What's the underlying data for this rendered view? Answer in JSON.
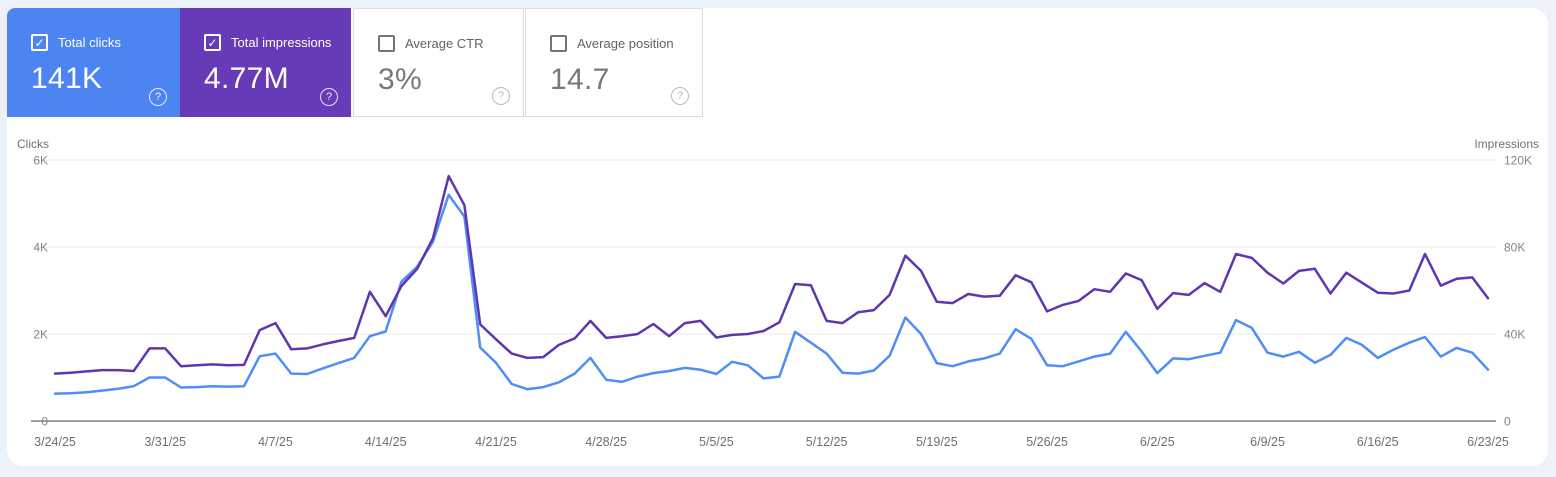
{
  "cards": [
    {
      "label": "Total clicks",
      "value": "141K",
      "checked": true,
      "bg": "#4c85f2",
      "accent": "#4f8df8"
    },
    {
      "label": "Total impressions",
      "value": "4.77M",
      "checked": true,
      "bg": "#673ab7",
      "accent": "#5f36b0"
    },
    {
      "label": "Average CTR",
      "value": "3%",
      "checked": false,
      "bg": "#ffffff",
      "accent": "#dadce0"
    },
    {
      "label": "Average position",
      "value": "14.7",
      "checked": false,
      "bg": "#ffffff",
      "accent": "#dadce0"
    }
  ],
  "chart_data": {
    "type": "line",
    "grid": true,
    "legend_position": "none",
    "left_axis": {
      "title": "Clicks",
      "ylim": [
        0,
        6000
      ],
      "ticks": [
        {
          "label": "0",
          "value": 0
        },
        {
          "label": "2K",
          "value": 2000
        },
        {
          "label": "4K",
          "value": 4000
        },
        {
          "label": "6K",
          "value": 6000
        }
      ]
    },
    "right_axis": {
      "title": "Impressions",
      "ylim": [
        0,
        120000
      ],
      "ticks": [
        {
          "label": "0",
          "value": 0
        },
        {
          "label": "40K",
          "value": 40000
        },
        {
          "label": "80K",
          "value": 80000
        },
        {
          "label": "120K",
          "value": 120000
        }
      ]
    },
    "x_tick_labels": [
      "3/24/25",
      "3/31/25",
      "4/7/25",
      "4/14/25",
      "4/21/25",
      "4/28/25",
      "5/5/25",
      "5/12/25",
      "5/19/25",
      "5/26/25",
      "6/2/25",
      "6/9/25",
      "6/16/25",
      "6/23/25"
    ],
    "x_start": "3/24/25",
    "x_end": "6/23/25",
    "x_interval": "daily",
    "series": [
      {
        "name": "Total clicks",
        "axis": "left",
        "color": "#4f8df8",
        "values": [
          630,
          640,
          660,
          700,
          740,
          800,
          1000,
          1000,
          770,
          780,
          800,
          790,
          800,
          1490,
          1550,
          1090,
          1080,
          1210,
          1330,
          1450,
          1950,
          2060,
          3200,
          3550,
          4120,
          5200,
          4700,
          1690,
          1340,
          850,
          730,
          780,
          890,
          1090,
          1450,
          950,
          900,
          1020,
          1100,
          1150,
          1220,
          1180,
          1080,
          1360,
          1280,
          980,
          1020,
          2050,
          1800,
          1550,
          1110,
          1090,
          1160,
          1500,
          2380,
          2000,
          1330,
          1260,
          1370,
          1440,
          1550,
          2110,
          1890,
          1280,
          1260,
          1370,
          1480,
          1550,
          2050,
          1600,
          1100,
          1440,
          1420,
          1500,
          1570,
          2320,
          2140,
          1570,
          1480,
          1590,
          1340,
          1520,
          1910,
          1750,
          1450,
          1640,
          1800,
          1930,
          1480,
          1680,
          1570,
          1180
        ]
      },
      {
        "name": "Total impressions",
        "axis": "right",
        "color": "#5f36b0",
        "values": [
          21800,
          22200,
          22800,
          23400,
          23400,
          23000,
          33400,
          33400,
          25200,
          25600,
          26000,
          25600,
          25800,
          41800,
          45000,
          33000,
          33400,
          35200,
          36800,
          38200,
          59400,
          48200,
          62000,
          70000,
          84000,
          112600,
          99200,
          44400,
          37600,
          31000,
          29000,
          29400,
          35000,
          38000,
          46000,
          38200,
          39000,
          40000,
          44600,
          39000,
          45000,
          46000,
          38400,
          39600,
          40000,
          41400,
          45400,
          63000,
          62400,
          46000,
          45000,
          50000,
          51000,
          58000,
          76000,
          69000,
          54800,
          54200,
          58400,
          57200,
          57600,
          67000,
          63800,
          50400,
          53400,
          55200,
          60600,
          59400,
          67800,
          64800,
          51600,
          58800,
          58000,
          63400,
          59400,
          76800,
          75000,
          68200,
          63200,
          69000,
          70000,
          58600,
          68200,
          63600,
          59000,
          58600,
          60000,
          76800,
          62200,
          65400,
          66000,
          56400
        ]
      }
    ]
  }
}
